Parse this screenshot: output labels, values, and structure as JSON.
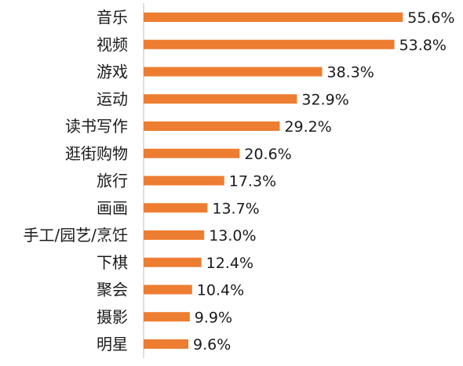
{
  "chart_data": {
    "type": "bar",
    "orientation": "horizontal",
    "categories": [
      "音乐",
      "视频",
      "游戏",
      "运动",
      "读书写作",
      "逛街购物",
      "旅行",
      "画画",
      "手工/园艺/烹饪",
      "下棋",
      "聚会",
      "摄影",
      "明星"
    ],
    "values": [
      55.6,
      53.8,
      38.3,
      32.9,
      29.2,
      20.6,
      17.3,
      13.7,
      13.0,
      12.4,
      10.4,
      9.9,
      9.6
    ],
    "value_labels": [
      "55.6%",
      "53.8%",
      "38.3%",
      "32.9%",
      "29.2%",
      "20.6%",
      "17.3%",
      "13.7%",
      "13.0%",
      "12.4%",
      "10.4%",
      "9.9%",
      "9.6%"
    ],
    "value_unit": "%",
    "title": "",
    "xlabel": "",
    "ylabel": "",
    "xlim": [
      0,
      60
    ],
    "grid": false,
    "legend": "none",
    "colors": {
      "bar": "#ED7D31",
      "text": "#1a1a1a",
      "axis": "#bfbfbf"
    }
  }
}
